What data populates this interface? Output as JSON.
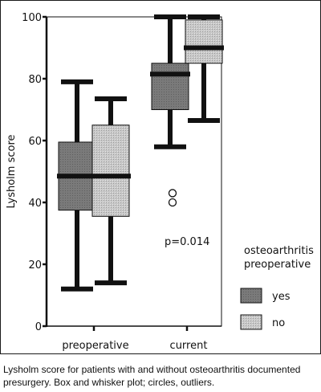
{
  "chart_data": {
    "type": "box",
    "ylabel": "Lysholm score",
    "ylim": [
      0,
      100
    ],
    "yticks": [
      0,
      20,
      40,
      60,
      80,
      100
    ],
    "categories": [
      "preoperative",
      "current"
    ],
    "legend": {
      "title_lines": [
        "osteoarthritis",
        "preoperative"
      ],
      "placement": "right",
      "entries": [
        {
          "label": "yes",
          "fill": "#7a7a7a"
        },
        {
          "label": "no",
          "fill": "#c8c8c8"
        }
      ]
    },
    "annotation": "p=0.014",
    "series": [
      {
        "name": "yes",
        "boxes": [
          {
            "category": "preoperative",
            "min": 12,
            "q1": 37.5,
            "median": 48.5,
            "q3": 59.5,
            "max": 79
          },
          {
            "category": "current",
            "min": 58,
            "q1": 70,
            "median": 81.5,
            "q3": 85,
            "max": 100,
            "outliers": [
              43,
              40
            ]
          }
        ]
      },
      {
        "name": "no",
        "boxes": [
          {
            "category": "preoperative",
            "min": 14,
            "q1": 35.5,
            "median": 48.5,
            "q3": 65,
            "max": 73.5
          },
          {
            "category": "current",
            "min": 66.5,
            "q1": 85,
            "median": 90,
            "q3": 99,
            "max": 100
          }
        ]
      }
    ],
    "colors": {
      "yes": "#7a7a7a",
      "no": "#c8c8c8",
      "ink": "#111111"
    }
  },
  "caption": "Lysholm score for patients with and without osteoarthritis documented presurgery. Box and whisker plot; circles, outliers."
}
